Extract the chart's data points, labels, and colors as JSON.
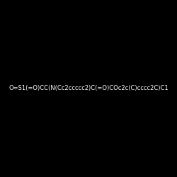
{
  "smiles": "O=S1(=O)CC(N(Cc2ccccc2)C(=O)COc2c(C)cccc2C)C1",
  "title": "",
  "img_size": [
    250,
    250
  ],
  "background": "#000000",
  "bond_color": "#ffffff",
  "atom_colors": {
    "O": "#ff0000",
    "S": "#cccc00",
    "N": "#0000cc",
    "C": "#ffffff"
  },
  "figsize": [
    2.5,
    2.5
  ],
  "dpi": 100
}
